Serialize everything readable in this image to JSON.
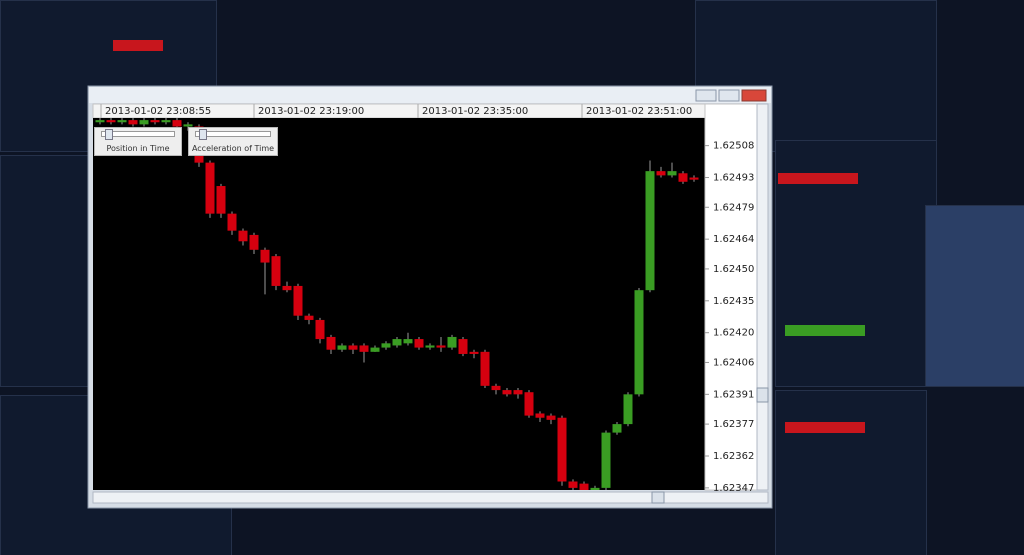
{
  "window": {
    "controls": [
      "Position in Time",
      "Acceleration of Time"
    ]
  },
  "chart_data": {
    "type": "candlestick",
    "time_labels": [
      "2013-01-02 23:08:55",
      "2013-01-02 23:19:00",
      "2013-01-02 23:35:00",
      "2013-01-02 23:51:00"
    ],
    "open": [
      1.62519,
      1.6252,
      1.62519,
      1.6252,
      1.62518,
      1.6252,
      1.62519,
      1.6252,
      1.62517,
      1.62517,
      1.625,
      1.62489,
      1.62476,
      1.62468,
      1.62466,
      1.62459,
      1.62456,
      1.62442,
      1.62442,
      1.62428,
      1.62426,
      1.62418,
      1.62412,
      1.62414,
      1.62414,
      1.62411,
      1.62413,
      1.62414,
      1.62415,
      1.62417,
      1.62413,
      1.62414,
      1.62413,
      1.62417,
      1.62411,
      1.62411,
      1.62395,
      1.62393,
      1.62393,
      1.62392,
      1.62382,
      1.62381,
      1.6238,
      1.6235,
      1.62349,
      1.62346,
      1.62347,
      1.62373,
      1.62377,
      1.62391,
      1.6244,
      1.62496,
      1.62494,
      1.62495,
      1.62493
    ],
    "high": [
      1.62521,
      1.62521,
      1.62521,
      1.62521,
      1.62521,
      1.62521,
      1.62521,
      1.62521,
      1.62519,
      1.62518,
      1.62501,
      1.6249,
      1.62477,
      1.62469,
      1.62467,
      1.6246,
      1.62457,
      1.62444,
      1.62443,
      1.62429,
      1.62427,
      1.62419,
      1.62415,
      1.62415,
      1.62415,
      1.62414,
      1.62416,
      1.62418,
      1.6242,
      1.62418,
      1.62415,
      1.62418,
      1.62419,
      1.62418,
      1.62412,
      1.62412,
      1.62396,
      1.62394,
      1.62394,
      1.62393,
      1.62383,
      1.62382,
      1.62381,
      1.62351,
      1.6235,
      1.62348,
      1.62374,
      1.62378,
      1.62392,
      1.62441,
      1.62501,
      1.62498,
      1.625,
      1.62496,
      1.62494
    ],
    "low": [
      1.62518,
      1.62518,
      1.62518,
      1.62517,
      1.62517,
      1.62518,
      1.62518,
      1.62515,
      1.62515,
      1.62498,
      1.62474,
      1.62474,
      1.62466,
      1.62461,
      1.62457,
      1.62438,
      1.6244,
      1.62439,
      1.62426,
      1.62424,
      1.62415,
      1.6241,
      1.62411,
      1.6241,
      1.62406,
      1.62411,
      1.62412,
      1.62413,
      1.62414,
      1.62412,
      1.62412,
      1.62411,
      1.62412,
      1.62409,
      1.62408,
      1.62394,
      1.62391,
      1.6239,
      1.62389,
      1.6238,
      1.62378,
      1.62377,
      1.62348,
      1.62346,
      1.62346,
      1.62346,
      1.62346,
      1.62372,
      1.62376,
      1.6239,
      1.62439,
      1.62493,
      1.62493,
      1.6249,
      1.62491
    ],
    "close": [
      1.6252,
      1.62519,
      1.6252,
      1.62518,
      1.6252,
      1.62519,
      1.6252,
      1.62517,
      1.62518,
      1.625,
      1.62476,
      1.62476,
      1.62468,
      1.62463,
      1.62459,
      1.62453,
      1.62442,
      1.6244,
      1.62428,
      1.62426,
      1.62417,
      1.62412,
      1.62414,
      1.62412,
      1.62411,
      1.62413,
      1.62415,
      1.62417,
      1.62417,
      1.62413,
      1.62414,
      1.62413,
      1.62418,
      1.6241,
      1.6241,
      1.62395,
      1.62393,
      1.62391,
      1.62391,
      1.62381,
      1.6238,
      1.62379,
      1.6235,
      1.62347,
      1.62346,
      1.62347,
      1.62373,
      1.62377,
      1.62391,
      1.6244,
      1.62496,
      1.62494,
      1.62496,
      1.62491,
      1.62492
    ],
    "up_color": "#3a9d23",
    "down_color": "#d6000f",
    "ylim": [
      1.62346,
      1.62521
    ],
    "yticks": [
      1.62508,
      1.62493,
      1.62479,
      1.62464,
      {
        "value": 1.6245,
        "label": "1.62450"
      },
      1.62435,
      {
        "value": 1.6242,
        "label": "1.62420"
      },
      1.62406,
      1.62391,
      1.62377,
      1.62362,
      1.62347
    ]
  }
}
